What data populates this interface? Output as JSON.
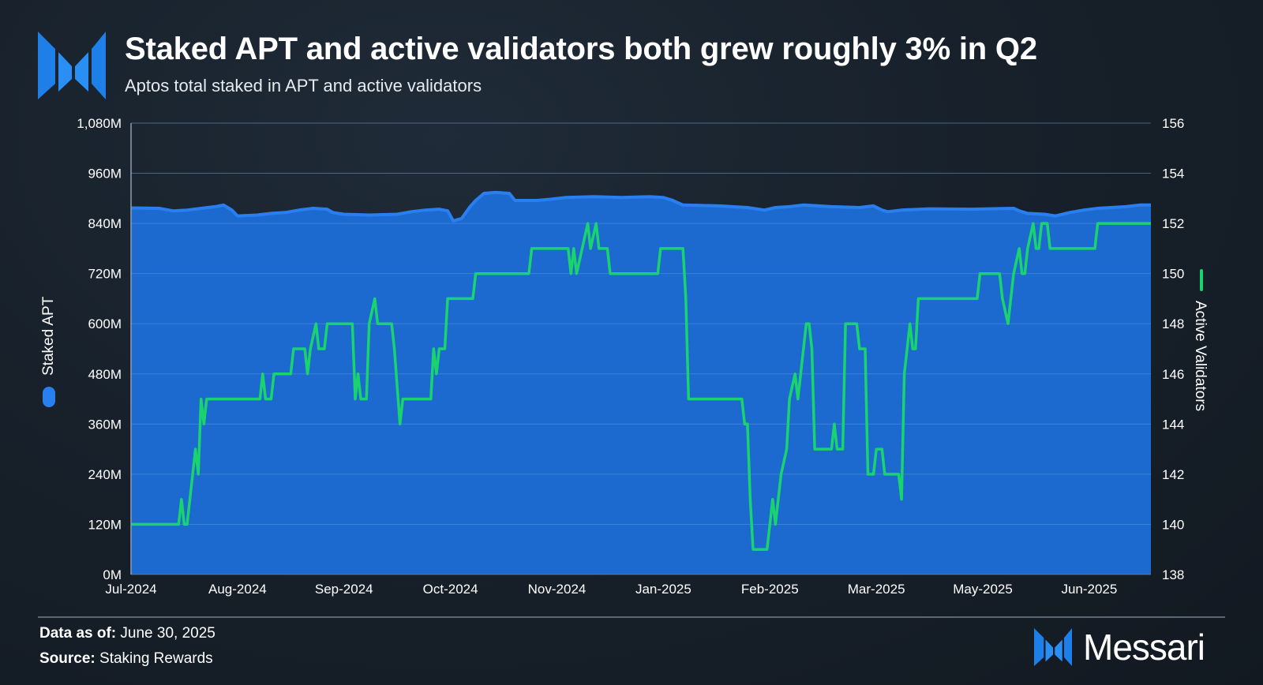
{
  "header": {
    "title": "Staked APT and active validators both grew roughly 3% in Q2",
    "subtitle": "Aptos total staked in APT and active validators"
  },
  "footer": {
    "data_as_of_label": "Data as of:",
    "data_as_of_value": "June 30, 2025",
    "source_label": "Source:",
    "source_value": "Staking Rewards",
    "brand_name": "Messari"
  },
  "colors": {
    "area": "#1c6ad0",
    "area_top": "#2a7ff0",
    "line_green": "#19d36e",
    "grid": "#3f74c9"
  },
  "chart_data": {
    "type": "area+line",
    "title": "Staked APT and active validators both grew roughly 3% in Q2",
    "left_axis": {
      "label": "Staked APT",
      "ylim": [
        0,
        1080
      ],
      "ticks": [
        0,
        120,
        240,
        360,
        480,
        600,
        720,
        840,
        960,
        1080
      ],
      "tick_labels": [
        "0M",
        "120M",
        "240M",
        "360M",
        "480M",
        "600M",
        "720M",
        "840M",
        "960M",
        "1,080M"
      ]
    },
    "right_axis": {
      "label": "Active Validators",
      "ylim": [
        138,
        156
      ],
      "ticks": [
        138,
        140,
        142,
        144,
        146,
        148,
        150,
        152,
        154,
        156
      ],
      "tick_labels": [
        "138",
        "140",
        "142",
        "144",
        "146",
        "148",
        "150",
        "152",
        "154",
        "156"
      ]
    },
    "x_axis": {
      "range_days": [
        0,
        364
      ],
      "ticks": [
        0,
        38,
        76,
        114,
        152,
        190,
        228,
        266,
        304,
        342
      ],
      "tick_labels": [
        "Jul-2024",
        "Aug-2024",
        "Sep-2024",
        "Oct-2024",
        "Nov-2024",
        "Jan-2025",
        "Feb-2025",
        "Mar-2025",
        "May-2025",
        "Jun-2025"
      ]
    },
    "series": [
      {
        "name": "Staked APT",
        "axis": "left",
        "kind": "area",
        "unit": "M APT",
        "points": [
          [
            0,
            877
          ],
          [
            10,
            876
          ],
          [
            15,
            870
          ],
          [
            20,
            872
          ],
          [
            25,
            876
          ],
          [
            30,
            880
          ],
          [
            33,
            884
          ],
          [
            36,
            872
          ],
          [
            38,
            858
          ],
          [
            45,
            860
          ],
          [
            50,
            864
          ],
          [
            55,
            866
          ],
          [
            60,
            872
          ],
          [
            65,
            876
          ],
          [
            70,
            874
          ],
          [
            72,
            866
          ],
          [
            76,
            862
          ],
          [
            85,
            860
          ],
          [
            95,
            862
          ],
          [
            100,
            868
          ],
          [
            105,
            872
          ],
          [
            110,
            874
          ],
          [
            113,
            870
          ],
          [
            115,
            846
          ],
          [
            118,
            852
          ],
          [
            121,
            880
          ],
          [
            123,
            895
          ],
          [
            126,
            912
          ],
          [
            130,
            914
          ],
          [
            135,
            912
          ],
          [
            137,
            895
          ],
          [
            145,
            895
          ],
          [
            150,
            898
          ],
          [
            155,
            902
          ],
          [
            165,
            904
          ],
          [
            175,
            902
          ],
          [
            185,
            904
          ],
          [
            190,
            902
          ],
          [
            193,
            896
          ],
          [
            197,
            884
          ],
          [
            210,
            882
          ],
          [
            220,
            878
          ],
          [
            226,
            872
          ],
          [
            230,
            878
          ],
          [
            235,
            880
          ],
          [
            240,
            884
          ],
          [
            250,
            880
          ],
          [
            260,
            878
          ],
          [
            265,
            882
          ],
          [
            268,
            872
          ],
          [
            270,
            868
          ],
          [
            275,
            872
          ],
          [
            285,
            875
          ],
          [
            300,
            874
          ],
          [
            315,
            876
          ],
          [
            317,
            870
          ],
          [
            320,
            864
          ],
          [
            326,
            862
          ],
          [
            330,
            858
          ],
          [
            335,
            866
          ],
          [
            340,
            872
          ],
          [
            345,
            876
          ],
          [
            355,
            880
          ],
          [
            360,
            884
          ],
          [
            364,
            884
          ]
        ]
      },
      {
        "name": "Active Validators",
        "axis": "right",
        "kind": "line",
        "unit": "validators",
        "points": [
          [
            0,
            140
          ],
          [
            17,
            140
          ],
          [
            18,
            141
          ],
          [
            19,
            140
          ],
          [
            20,
            140
          ],
          [
            22,
            142
          ],
          [
            23,
            143
          ],
          [
            24,
            142
          ],
          [
            25,
            145
          ],
          [
            26,
            144
          ],
          [
            27,
            145
          ],
          [
            46,
            145
          ],
          [
            47,
            146
          ],
          [
            48,
            145
          ],
          [
            50,
            145
          ],
          [
            51,
            146
          ],
          [
            57,
            146
          ],
          [
            58,
            147
          ],
          [
            62,
            147
          ],
          [
            63,
            146
          ],
          [
            64,
            147
          ],
          [
            66,
            148
          ],
          [
            67,
            147
          ],
          [
            69,
            147
          ],
          [
            70,
            148
          ],
          [
            79,
            148
          ],
          [
            80,
            145
          ],
          [
            81,
            146
          ],
          [
            82,
            145
          ],
          [
            84,
            145
          ],
          [
            85,
            148
          ],
          [
            87,
            149
          ],
          [
            88,
            148
          ],
          [
            93,
            148
          ],
          [
            94,
            147
          ],
          [
            96,
            144
          ],
          [
            97,
            145
          ],
          [
            107,
            145
          ],
          [
            108,
            147
          ],
          [
            109,
            146
          ],
          [
            110,
            147
          ],
          [
            112,
            147
          ],
          [
            113,
            149
          ],
          [
            122,
            149
          ],
          [
            123,
            150
          ],
          [
            142,
            150
          ],
          [
            143,
            151
          ],
          [
            156,
            151
          ],
          [
            157,
            150
          ],
          [
            158,
            151
          ],
          [
            159,
            150
          ],
          [
            161,
            151
          ],
          [
            163,
            152
          ],
          [
            164,
            151
          ],
          [
            166,
            152
          ],
          [
            167,
            151
          ],
          [
            170,
            151
          ],
          [
            171,
            150
          ],
          [
            188,
            150
          ],
          [
            189,
            151
          ],
          [
            197,
            151
          ],
          [
            198,
            149
          ],
          [
            199,
            145
          ],
          [
            218,
            145
          ],
          [
            219,
            144
          ],
          [
            220,
            144
          ],
          [
            221,
            141
          ],
          [
            222,
            139
          ],
          [
            227,
            139
          ],
          [
            228,
            140
          ],
          [
            229,
            141
          ],
          [
            230,
            140
          ],
          [
            231,
            141
          ],
          [
            232,
            142
          ],
          [
            234,
            143
          ],
          [
            235,
            145
          ],
          [
            237,
            146
          ],
          [
            238,
            145
          ],
          [
            239,
            146
          ],
          [
            241,
            148
          ],
          [
            242,
            148
          ],
          [
            243,
            147
          ],
          [
            244,
            143
          ],
          [
            250,
            143
          ],
          [
            251,
            144
          ],
          [
            252,
            143
          ],
          [
            254,
            143
          ],
          [
            255,
            148
          ],
          [
            259,
            148
          ],
          [
            260,
            147
          ],
          [
            262,
            147
          ],
          [
            263,
            142
          ],
          [
            265,
            142
          ],
          [
            266,
            143
          ],
          [
            268,
            143
          ],
          [
            269,
            142
          ],
          [
            274,
            142
          ],
          [
            275,
            141
          ],
          [
            276,
            146
          ],
          [
            277,
            147
          ],
          [
            278,
            148
          ],
          [
            279,
            147
          ],
          [
            280,
            147
          ],
          [
            281,
            149
          ],
          [
            302,
            149
          ],
          [
            303,
            150
          ],
          [
            310,
            150
          ],
          [
            311,
            149
          ],
          [
            313,
            148
          ],
          [
            314,
            149
          ],
          [
            315,
            150
          ],
          [
            317,
            151
          ],
          [
            318,
            150
          ],
          [
            319,
            150
          ],
          [
            320,
            151
          ],
          [
            322,
            152
          ],
          [
            323,
            151
          ],
          [
            324,
            151
          ],
          [
            325,
            152
          ],
          [
            327,
            152
          ],
          [
            328,
            151
          ],
          [
            344,
            151
          ],
          [
            345,
            152
          ],
          [
            364,
            152
          ]
        ]
      }
    ],
    "legend": [
      {
        "name": "Staked APT",
        "position": "left-axis"
      },
      {
        "name": "Active Validators",
        "position": "right-axis"
      }
    ],
    "grid": true
  }
}
